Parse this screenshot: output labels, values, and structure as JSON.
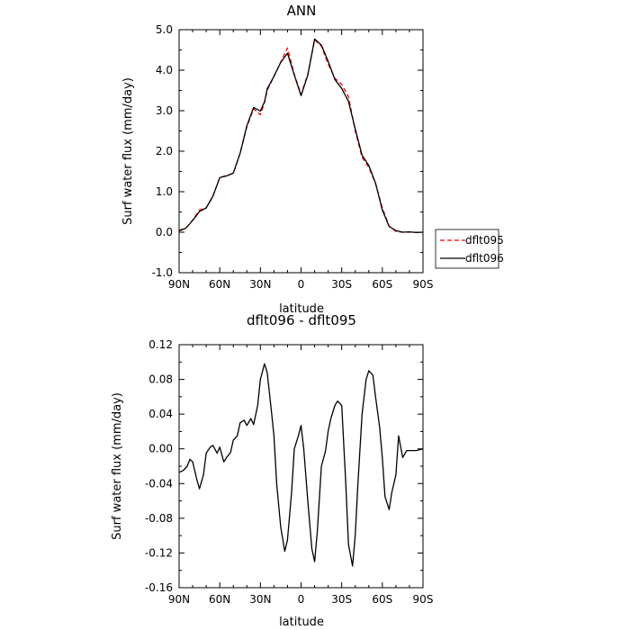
{
  "chart_data": [
    {
      "type": "line",
      "title": "ANN",
      "xlabel": "latitude",
      "ylabel": "Surf water flux (mm/day)",
      "xlim": [
        90,
        -90
      ],
      "ylim": [
        -1.0,
        5.0
      ],
      "xticks": [
        90,
        60,
        30,
        0,
        -30,
        -60,
        -90
      ],
      "xtick_labels": [
        "90N",
        "60N",
        "30N",
        "0",
        "30S",
        "60S",
        "90S"
      ],
      "yticks": [
        -1.0,
        0.0,
        1.0,
        2.0,
        3.0,
        4.0,
        5.0
      ],
      "ytick_labels": [
        "-1.0",
        "0.0",
        "1.0",
        "2.0",
        "3.0",
        "4.0",
        "5.0"
      ],
      "legend_position": "right",
      "series": [
        {
          "name": "dflt095",
          "color": "#ff0000",
          "dash": "dashed",
          "x": [
            90,
            85,
            80,
            75,
            70,
            65,
            60,
            55,
            50,
            45,
            40,
            35,
            30,
            27,
            25,
            20,
            15,
            10,
            5,
            0,
            -5,
            -10,
            -15,
            -20,
            -25,
            -30,
            -35,
            -40,
            -45,
            -50,
            -55,
            -60,
            -65,
            -70,
            -75,
            -80,
            -85,
            -90
          ],
          "y": [
            0.05,
            0.1,
            0.3,
            0.55,
            0.6,
            0.9,
            1.35,
            1.4,
            1.45,
            1.95,
            2.6,
            3.05,
            2.9,
            3.2,
            3.5,
            3.85,
            4.2,
            4.55,
            3.9,
            3.4,
            3.9,
            4.75,
            4.6,
            4.15,
            3.8,
            3.65,
            3.35,
            2.5,
            1.85,
            1.6,
            1.2,
            0.6,
            0.15,
            0.02,
            0.0,
            0.0,
            0.0,
            0.0
          ]
        },
        {
          "name": "dflt096",
          "color": "#000000",
          "dash": "solid",
          "x": [
            90,
            85,
            80,
            75,
            70,
            65,
            60,
            55,
            50,
            45,
            40,
            35,
            30,
            27,
            25,
            20,
            15,
            10,
            5,
            0,
            -5,
            -10,
            -15,
            -20,
            -25,
            -30,
            -35,
            -40,
            -45,
            -50,
            -55,
            -60,
            -65,
            -70,
            -75,
            -80,
            -85,
            -90
          ],
          "y": [
            0.03,
            0.1,
            0.29,
            0.51,
            0.6,
            0.89,
            1.35,
            1.39,
            1.46,
            1.95,
            2.63,
            3.08,
            2.99,
            3.22,
            3.54,
            3.85,
            4.19,
            4.42,
            3.88,
            3.37,
            3.88,
            4.77,
            4.62,
            4.22,
            3.77,
            3.55,
            3.23,
            2.55,
            1.9,
            1.65,
            1.21,
            0.55,
            0.14,
            0.04,
            0.0,
            0.01,
            -0.01,
            0.0
          ]
        }
      ]
    },
    {
      "type": "line",
      "title": "dflt096 - dflt095",
      "xlabel": "latitude",
      "ylabel": "Surf water flux (mm/day)",
      "xlim": [
        90,
        -90
      ],
      "ylim": [
        -0.16,
        0.12
      ],
      "xticks": [
        90,
        60,
        30,
        0,
        -30,
        -60,
        -90
      ],
      "xtick_labels": [
        "90N",
        "60N",
        "30N",
        "0",
        "30S",
        "60S",
        "90S"
      ],
      "yticks": [
        -0.16,
        -0.12,
        -0.08,
        -0.04,
        0.0,
        0.04,
        0.08,
        0.12
      ],
      "ytick_labels": [
        "-0.16",
        "-0.12",
        "-0.08",
        "-0.04",
        "0.00",
        "0.04",
        "0.08",
        "0.12"
      ],
      "series": [
        {
          "name": "",
          "color": "#000000",
          "dash": "solid",
          "x": [
            90,
            87,
            84,
            82,
            80,
            77,
            75,
            72,
            70,
            67,
            65,
            62,
            60,
            57,
            55,
            52,
            50,
            47,
            45,
            42,
            40,
            37,
            35,
            32,
            30,
            27,
            25,
            22,
            20,
            18,
            15,
            12,
            10,
            7,
            5,
            2,
            0,
            -2,
            -5,
            -8,
            -10,
            -12,
            -15,
            -18,
            -20,
            -22,
            -25,
            -27,
            -30,
            -33,
            -35,
            -38,
            -40,
            -42,
            -45,
            -48,
            -50,
            -53,
            -55,
            -58,
            -60,
            -62,
            -65,
            -67,
            -70,
            -72,
            -75,
            -78,
            -80,
            -85,
            -90
          ],
          "y": [
            -0.027,
            -0.025,
            -0.02,
            -0.012,
            -0.015,
            -0.035,
            -0.046,
            -0.03,
            -0.005,
            0.002,
            0.004,
            -0.005,
            0.002,
            -0.015,
            -0.01,
            -0.004,
            0.01,
            0.015,
            0.03,
            0.033,
            0.027,
            0.035,
            0.028,
            0.05,
            0.08,
            0.098,
            0.088,
            0.045,
            0.015,
            -0.04,
            -0.09,
            -0.118,
            -0.105,
            -0.05,
            0.0,
            0.015,
            0.027,
            0.0,
            -0.06,
            -0.115,
            -0.13,
            -0.095,
            -0.02,
            -0.003,
            0.02,
            0.035,
            0.05,
            0.055,
            0.05,
            -0.04,
            -0.11,
            -0.135,
            -0.1,
            -0.04,
            0.04,
            0.08,
            0.09,
            0.085,
            0.06,
            0.025,
            -0.01,
            -0.055,
            -0.07,
            -0.05,
            -0.03,
            0.015,
            -0.01,
            -0.002,
            -0.002,
            -0.002,
            0.0
          ]
        }
      ]
    }
  ]
}
